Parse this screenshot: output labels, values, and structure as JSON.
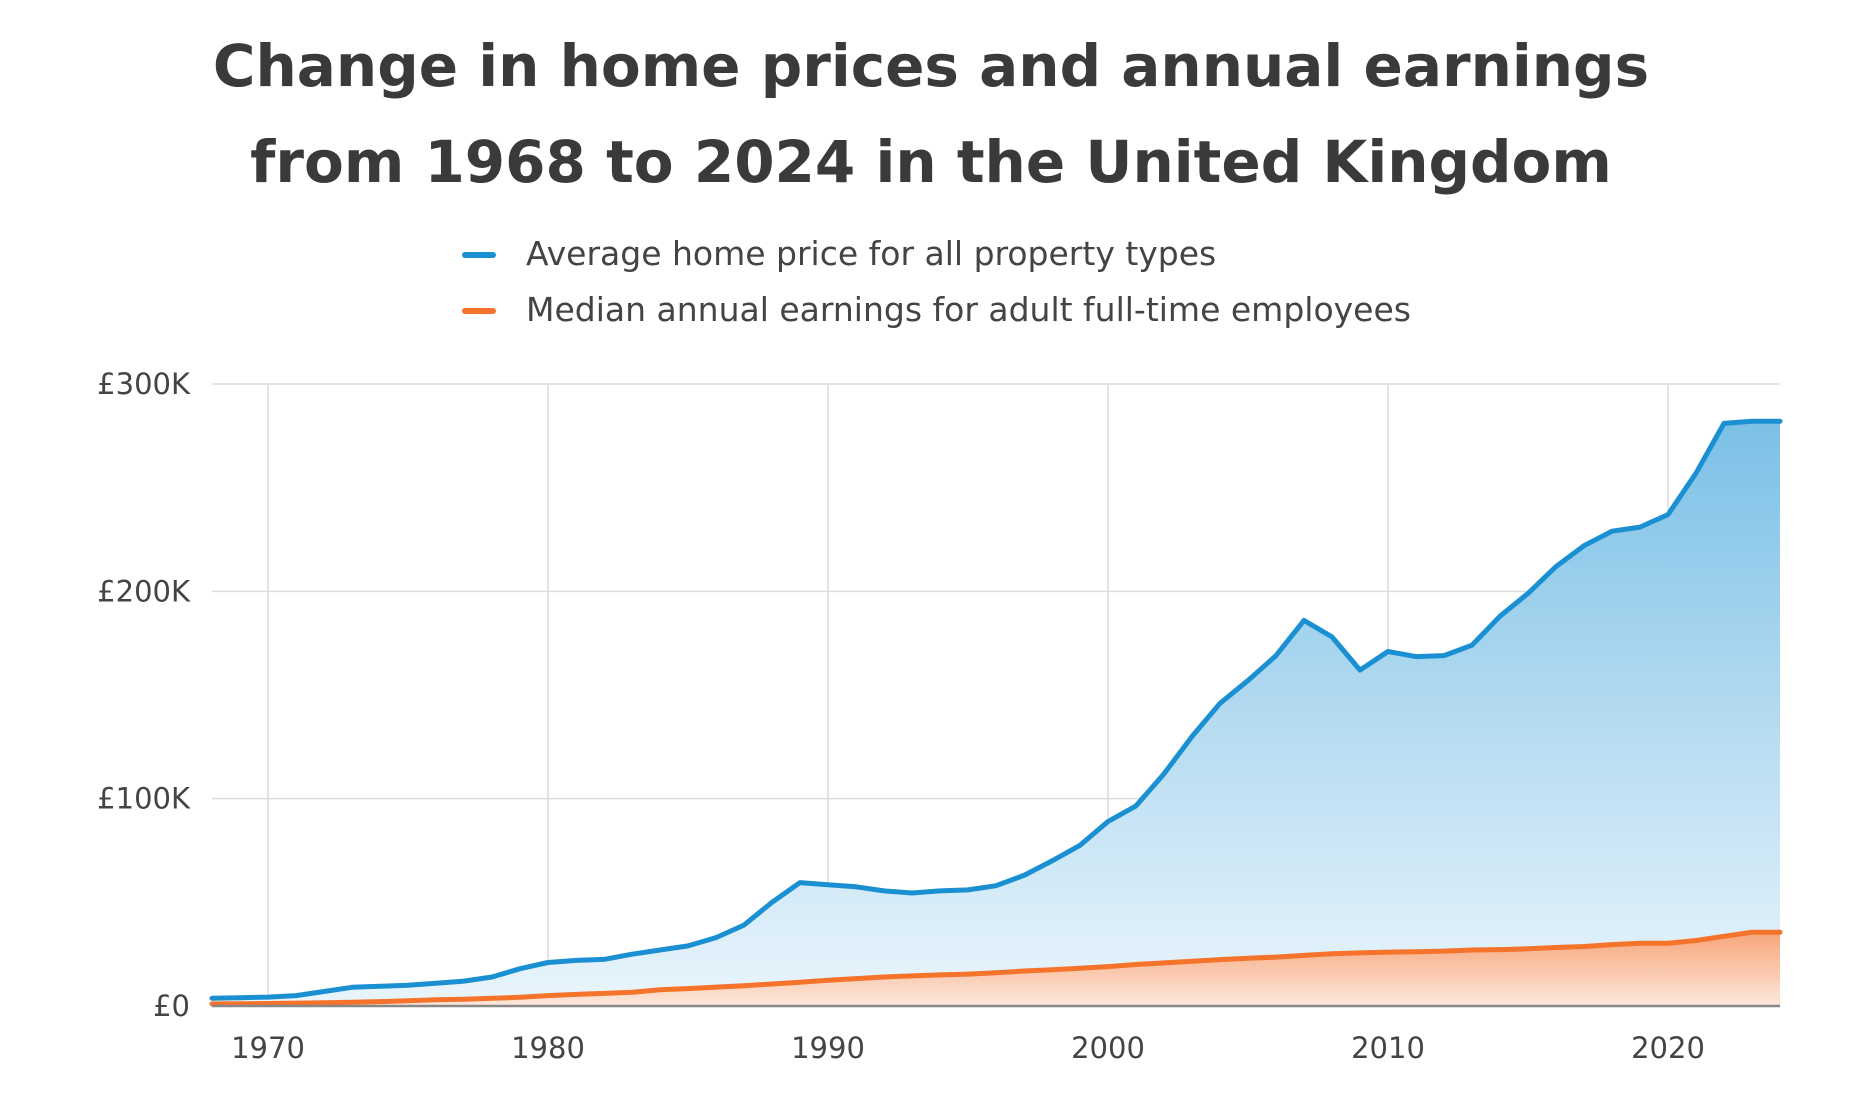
{
  "chart_data": {
    "type": "area",
    "title_lines": [
      "Change in home prices and annual earnings",
      "from 1968 to 2024 in the United Kingdom"
    ],
    "xlabel": "",
    "ylabel": "",
    "xlim": [
      1968,
      2024
    ],
    "ylim": [
      0,
      300000
    ],
    "x_ticks": [
      1970,
      1980,
      1990,
      2000,
      2010,
      2020
    ],
    "y_ticks": [
      {
        "value": 0,
        "label": "£0"
      },
      {
        "value": 100000,
        "label": "£100K"
      },
      {
        "value": 200000,
        "label": "£200K"
      },
      {
        "value": 300000,
        "label": "£300K"
      }
    ],
    "grid": true,
    "legend_position": "top-center",
    "x": [
      1968,
      1969,
      1970,
      1971,
      1972,
      1973,
      1974,
      1975,
      1976,
      1977,
      1978,
      1979,
      1980,
      1981,
      1982,
      1983,
      1984,
      1985,
      1986,
      1987,
      1988,
      1989,
      1990,
      1991,
      1992,
      1993,
      1994,
      1995,
      1996,
      1997,
      1998,
      1999,
      2000,
      2001,
      2002,
      2003,
      2004,
      2005,
      2006,
      2007,
      2008,
      2009,
      2010,
      2011,
      2012,
      2013,
      2014,
      2015,
      2016,
      2017,
      2018,
      2019,
      2020,
      2021,
      2022,
      2023,
      2024
    ],
    "series": [
      {
        "name": "Average home price for all property types",
        "color": "#1a90d2",
        "values": [
          3700,
          4000,
          4300,
          5000,
          7000,
          9000,
          9500,
          10000,
          11000,
          12000,
          14000,
          18000,
          21000,
          22000,
          22500,
          25000,
          27000,
          29000,
          33000,
          39000,
          50000,
          59500,
          58500,
          57500,
          55500,
          54500,
          55500,
          56000,
          58000,
          63000,
          70000,
          77500,
          89000,
          96500,
          112000,
          130000,
          146000,
          157000,
          169000,
          186000,
          178000,
          162000,
          171000,
          168500,
          169000,
          174000,
          188000,
          199000,
          212000,
          222000,
          229000,
          231000,
          237000,
          257000,
          281000,
          282000,
          282000
        ]
      },
      {
        "name": "Median annual earnings for adult full-time employees",
        "color": "#f5732a",
        "values": [
          1000,
          1100,
          1200,
          1400,
          1600,
          1800,
          2100,
          2500,
          3000,
          3300,
          3700,
          4200,
          5000,
          5600,
          6100,
          6600,
          7800,
          8400,
          9100,
          9800,
          10600,
          11500,
          12400,
          13200,
          14000,
          14500,
          15000,
          15400,
          16000,
          16900,
          17500,
          18200,
          19000,
          20000,
          20800,
          21600,
          22400,
          23000,
          23600,
          24400,
          25200,
          25600,
          26000,
          26200,
          26500,
          27000,
          27200,
          27600,
          28200,
          28700,
          29600,
          30300,
          30300,
          31600,
          33600,
          35600,
          35600
        ]
      }
    ]
  }
}
